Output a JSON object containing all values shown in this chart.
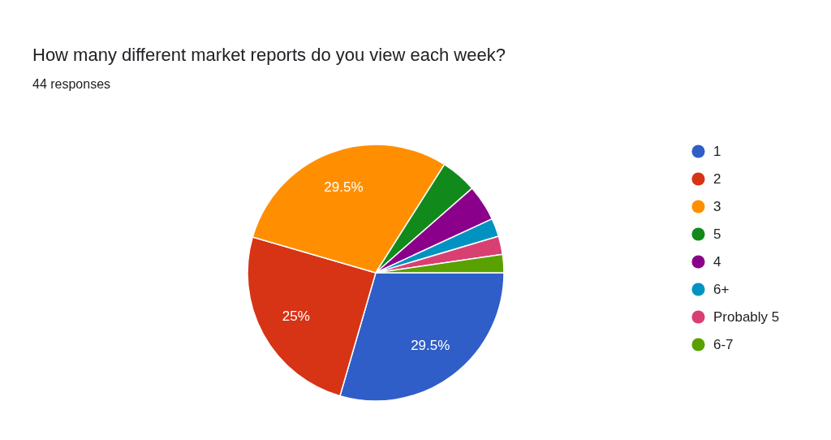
{
  "chart_data": {
    "type": "pie",
    "title": "How many different market reports do you view each week?",
    "subtitle": "44 responses",
    "categories": [
      "1",
      "2",
      "3",
      "5",
      "4",
      "6+",
      "Probably 5",
      "6-7"
    ],
    "values": [
      29.5,
      25,
      29.5,
      4.55,
      4.55,
      2.3,
      2.3,
      2.3
    ],
    "colors": [
      "#305ec8",
      "#d73315",
      "#ff8f00",
      "#118a1b",
      "#8a008a",
      "#0093c2",
      "#d94072",
      "#59a100"
    ],
    "value_labels": [
      "29.5%",
      "25%",
      "29.5%",
      null,
      null,
      null,
      null,
      null
    ],
    "legend": "right"
  }
}
